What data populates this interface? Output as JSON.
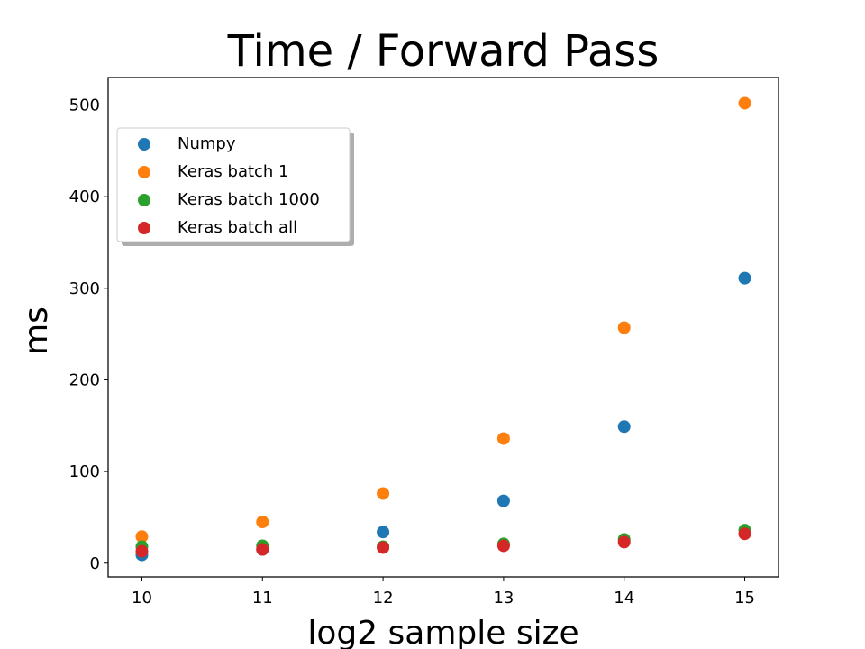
{
  "chart_data": {
    "type": "scatter",
    "title": "Time / Forward Pass",
    "xlabel": "log2 sample size",
    "ylabel": "ms",
    "xlim": [
      9.72,
      15.28
    ],
    "ylim": [
      -15,
      530
    ],
    "xticks": [
      10,
      11,
      12,
      13,
      14,
      15
    ],
    "yticks": [
      0,
      100,
      200,
      300,
      400,
      500
    ],
    "legend_position": "upper-left",
    "grid": false,
    "series": [
      {
        "name": "Numpy",
        "color": "#1f77b4",
        "x": [
          10,
          11,
          12,
          13,
          14,
          15
        ],
        "y": [
          9,
          15,
          34,
          68,
          149,
          311
        ]
      },
      {
        "name": "Keras batch 1",
        "color": "#ff7f0e",
        "x": [
          10,
          11,
          12,
          13,
          14,
          15
        ],
        "y": [
          29,
          45,
          76,
          136,
          257,
          502
        ]
      },
      {
        "name": "Keras batch 1000",
        "color": "#2ca02c",
        "x": [
          10,
          11,
          12,
          13,
          14,
          15
        ],
        "y": [
          18,
          19,
          18,
          21,
          26,
          36
        ]
      },
      {
        "name": "Keras batch all",
        "color": "#d62728",
        "x": [
          10,
          11,
          12,
          13,
          14,
          15
        ],
        "y": [
          13,
          15,
          17,
          19,
          23,
          32
        ]
      }
    ]
  }
}
